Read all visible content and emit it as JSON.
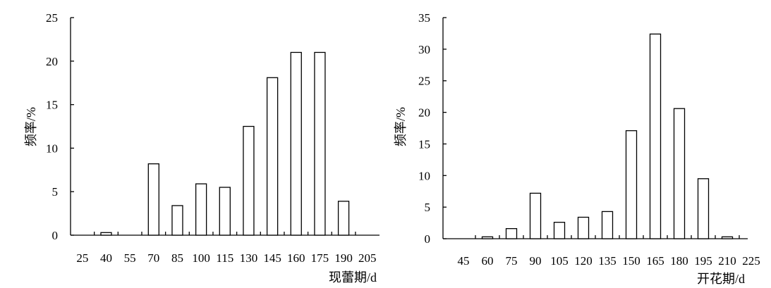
{
  "chart_data": [
    {
      "type": "bar",
      "xlabel": "现蕾期/d",
      "ylabel": "频率/%",
      "ylim": [
        0,
        25
      ],
      "yticks": [
        0,
        5,
        10,
        15,
        20,
        25
      ],
      "tick_labels": [
        "25",
        "40",
        "55",
        "70",
        "85",
        "100",
        "115",
        "130",
        "145",
        "160",
        "175",
        "190",
        "205"
      ],
      "values": [
        0,
        0.3,
        0,
        8.2,
        3.4,
        5.9,
        5.5,
        12.5,
        18.1,
        21.0,
        21.0,
        3.9,
        0
      ],
      "grid": false
    },
    {
      "type": "bar",
      "xlabel": "开花期/d",
      "ylabel": "频率/%",
      "ylim": [
        0,
        35
      ],
      "yticks": [
        0,
        5,
        10,
        15,
        20,
        25,
        30,
        35
      ],
      "tick_labels": [
        "45",
        "60",
        "75",
        "90",
        "105",
        "120",
        "135",
        "150",
        "165",
        "180",
        "195",
        "210",
        "225"
      ],
      "values": [
        0,
        0.3,
        1.6,
        7.2,
        2.6,
        3.4,
        4.3,
        17.1,
        32.4,
        20.6,
        9.5,
        0.3,
        0
      ],
      "grid": false
    }
  ]
}
